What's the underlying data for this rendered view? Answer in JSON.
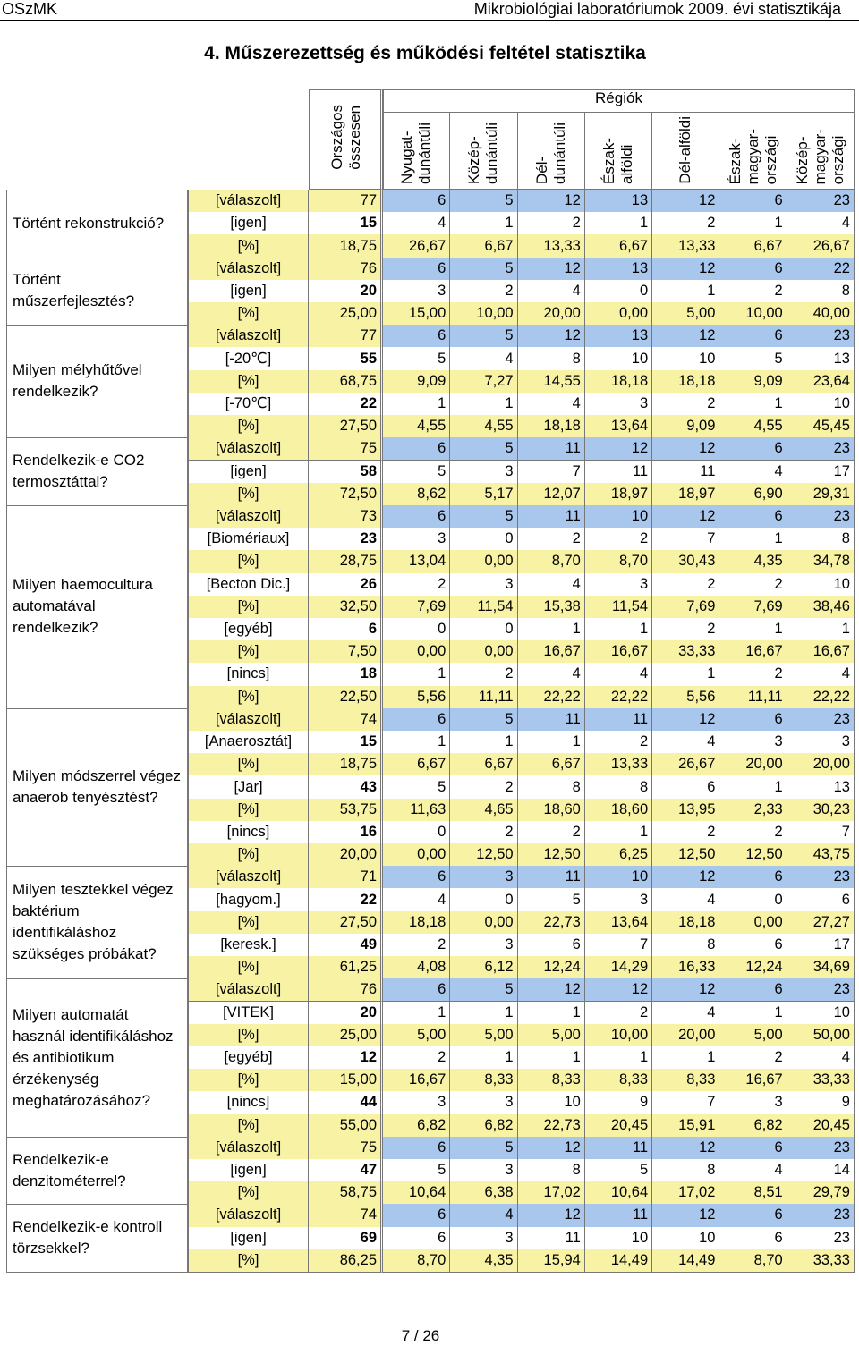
{
  "header": {
    "left": "OSzMK",
    "right": "Mikrobiológiai laboratóriumok 2009. évi statisztikája"
  },
  "title": "4. Műszerezettség és működési feltétel statisztika",
  "table": {
    "national": "Országos\nösszesen",
    "regions_label": "Régiók",
    "regions": [
      "Nyugat-\ndunántúli",
      "Közép-\ndunántúli",
      "Dél-\ndunántúli",
      "Észak-\nalföldi",
      "Dél-alföldi",
      "Észak-\nmagyar-\nországi",
      "Közép-\nmagyar-\nországi"
    ],
    "groups": [
      {
        "question": "Történt rekonstrukció?",
        "rows": [
          [
            "[válaszolt]",
            "77",
            "6",
            "5",
            "12",
            "13",
            "12",
            "6",
            "23"
          ],
          [
            "[igen]",
            "15",
            "4",
            "1",
            "2",
            "1",
            "2",
            "1",
            "4"
          ],
          [
            "[%]",
            "18,75",
            "26,67",
            "6,67",
            "13,33",
            "6,67",
            "13,33",
            "6,67",
            "26,67"
          ]
        ]
      },
      {
        "question": "Történt műszerfejlesztés?",
        "rows": [
          [
            "[válaszolt]",
            "76",
            "6",
            "5",
            "12",
            "13",
            "12",
            "6",
            "22"
          ],
          [
            "[igen]",
            "20",
            "3",
            "2",
            "4",
            "0",
            "1",
            "2",
            "8"
          ],
          [
            "[%]",
            "25,00",
            "15,00",
            "10,00",
            "20,00",
            "0,00",
            "5,00",
            "10,00",
            "40,00"
          ]
        ]
      },
      {
        "question": "Milyen mélyhűtővel rendelkezik?",
        "rows": [
          [
            "[válaszolt]",
            "77",
            "6",
            "5",
            "12",
            "13",
            "12",
            "6",
            "23"
          ],
          [
            "[-20℃]",
            "55",
            "5",
            "4",
            "8",
            "10",
            "10",
            "5",
            "13"
          ],
          [
            "[%]",
            "68,75",
            "9,09",
            "7,27",
            "14,55",
            "18,18",
            "18,18",
            "9,09",
            "23,64"
          ],
          [
            "[-70℃]",
            "22",
            "1",
            "1",
            "4",
            "3",
            "2",
            "1",
            "10"
          ],
          [
            "[%]",
            "27,50",
            "4,55",
            "4,55",
            "18,18",
            "13,64",
            "9,09",
            "4,55",
            "45,45"
          ]
        ]
      },
      {
        "question": "Rendelkezik-e CO2 termosztáttal?",
        "rows": [
          [
            "[válaszolt]",
            "75",
            "6",
            "5",
            "11",
            "12",
            "12",
            "6",
            "23"
          ],
          [
            "[igen]",
            "58",
            "5",
            "3",
            "7",
            "11",
            "11",
            "4",
            "17"
          ],
          [
            "[%]",
            "72,50",
            "8,62",
            "5,17",
            "12,07",
            "18,97",
            "18,97",
            "6,90",
            "29,31"
          ]
        ]
      },
      {
        "question": "Milyen haemocultura automatával rendelkezik?",
        "rows": [
          [
            "[válaszolt]",
            "73",
            "6",
            "5",
            "11",
            "10",
            "12",
            "6",
            "23"
          ],
          [
            "[Biomériaux]",
            "23",
            "3",
            "0",
            "2",
            "2",
            "7",
            "1",
            "8"
          ],
          [
            "[%]",
            "28,75",
            "13,04",
            "0,00",
            "8,70",
            "8,70",
            "30,43",
            "4,35",
            "34,78"
          ],
          [
            "[Becton Dic.]",
            "26",
            "2",
            "3",
            "4",
            "3",
            "2",
            "2",
            "10"
          ],
          [
            "[%]",
            "32,50",
            "7,69",
            "11,54",
            "15,38",
            "11,54",
            "7,69",
            "7,69",
            "38,46"
          ],
          [
            "[egyéb]",
            "6",
            "0",
            "0",
            "1",
            "1",
            "2",
            "1",
            "1"
          ],
          [
            "[%]",
            "7,50",
            "0,00",
            "0,00",
            "16,67",
            "16,67",
            "33,33",
            "16,67",
            "16,67"
          ],
          [
            "[nincs]",
            "18",
            "1",
            "2",
            "4",
            "4",
            "1",
            "2",
            "4"
          ],
          [
            "[%]",
            "22,50",
            "5,56",
            "11,11",
            "22,22",
            "22,22",
            "5,56",
            "11,11",
            "22,22"
          ]
        ]
      },
      {
        "question": "Milyen módszerrel végez anaerob tenyésztést?",
        "rows": [
          [
            "[válaszolt]",
            "74",
            "6",
            "5",
            "11",
            "11",
            "12",
            "6",
            "23"
          ],
          [
            "[Anaerosztát]",
            "15",
            "1",
            "1",
            "1",
            "2",
            "4",
            "3",
            "3"
          ],
          [
            "[%]",
            "18,75",
            "6,67",
            "6,67",
            "6,67",
            "13,33",
            "26,67",
            "20,00",
            "20,00"
          ],
          [
            "[Jar]",
            "43",
            "5",
            "2",
            "8",
            "8",
            "6",
            "1",
            "13"
          ],
          [
            "[%]",
            "53,75",
            "11,63",
            "4,65",
            "18,60",
            "18,60",
            "13,95",
            "2,33",
            "30,23"
          ],
          [
            "[nincs]",
            "16",
            "0",
            "2",
            "2",
            "1",
            "2",
            "2",
            "7"
          ],
          [
            "[%]",
            "20,00",
            "0,00",
            "12,50",
            "12,50",
            "6,25",
            "12,50",
            "12,50",
            "43,75"
          ]
        ]
      },
      {
        "question": "Milyen tesztekkel végez baktérium identifikáláshoz szükséges próbákat?",
        "rows": [
          [
            "[válaszolt]",
            "71",
            "6",
            "3",
            "11",
            "10",
            "12",
            "6",
            "23"
          ],
          [
            "[hagyom.]",
            "22",
            "4",
            "0",
            "5",
            "3",
            "4",
            "0",
            "6"
          ],
          [
            "[%]",
            "27,50",
            "18,18",
            "0,00",
            "22,73",
            "13,64",
            "18,18",
            "0,00",
            "27,27"
          ],
          [
            "[keresk.]",
            "49",
            "2",
            "3",
            "6",
            "7",
            "8",
            "6",
            "17"
          ],
          [
            "[%]",
            "61,25",
            "4,08",
            "6,12",
            "12,24",
            "14,29",
            "16,33",
            "12,24",
            "34,69"
          ]
        ]
      },
      {
        "question": "Milyen automatát használ identifikáláshoz és antibiotikum érzékenység meghatározásához?",
        "rows": [
          [
            "[válaszolt]",
            "76",
            "6",
            "5",
            "12",
            "12",
            "12",
            "6",
            "23"
          ],
          [
            "[VITEK]",
            "20",
            "1",
            "1",
            "1",
            "2",
            "4",
            "1",
            "10"
          ],
          [
            "[%]",
            "25,00",
            "5,00",
            "5,00",
            "5,00",
            "10,00",
            "20,00",
            "5,00",
            "50,00"
          ],
          [
            "[egyéb]",
            "12",
            "2",
            "1",
            "1",
            "1",
            "1",
            "2",
            "4"
          ],
          [
            "[%]",
            "15,00",
            "16,67",
            "8,33",
            "8,33",
            "8,33",
            "8,33",
            "16,67",
            "33,33"
          ],
          [
            "[nincs]",
            "44",
            "3",
            "3",
            "10",
            "9",
            "7",
            "3",
            "9"
          ],
          [
            "[%]",
            "55,00",
            "6,82",
            "6,82",
            "22,73",
            "20,45",
            "15,91",
            "6,82",
            "20,45"
          ]
        ]
      },
      {
        "question": "Rendelkezik-e denzitométerrel?",
        "rows": [
          [
            "[válaszolt]",
            "75",
            "6",
            "5",
            "12",
            "11",
            "12",
            "6",
            "23"
          ],
          [
            "[igen]",
            "47",
            "5",
            "3",
            "8",
            "5",
            "8",
            "4",
            "14"
          ],
          [
            "[%]",
            "58,75",
            "10,64",
            "6,38",
            "17,02",
            "10,64",
            "17,02",
            "8,51",
            "29,79"
          ]
        ]
      },
      {
        "question": "Rendelkezik-e kontroll törzsekkel?",
        "rows": [
          [
            "[válaszolt]",
            "74",
            "6",
            "4",
            "12",
            "11",
            "12",
            "6",
            "23"
          ],
          [
            "[igen]",
            "69",
            "6",
            "3",
            "11",
            "10",
            "10",
            "6",
            "23"
          ],
          [
            "[%]",
            "86,25",
            "8,70",
            "4,35",
            "15,94",
            "14,49",
            "14,49",
            "8,70",
            "33,33"
          ]
        ]
      }
    ]
  },
  "footer": "7 / 26"
}
